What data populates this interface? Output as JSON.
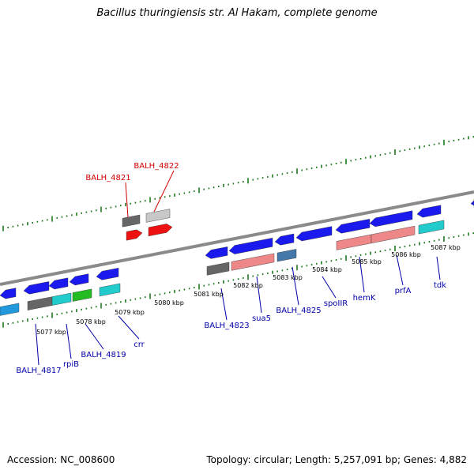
{
  "title": "Bacillus thuringiensis str. Al Hakam, complete genome",
  "footer": {
    "accession": "Accession: NC_008600",
    "topology": "Topology: circular; Length: 5,257,091 bp; Genes: 4,882"
  },
  "colors": {
    "backbone": "#8a8a8a",
    "tick": "#1f7a1f",
    "label_forward": "#d00000",
    "label_reverse": "#0000aa",
    "gene_blue": "#1a1aee",
    "gene_red": "#ee1111",
    "gene_light_red": "#ee8888",
    "gene_gray": "#666666",
    "gene_light_gray": "#c8c8c8",
    "gene_cyan": "#22cccc",
    "gene_light_blue": "#2299dd",
    "gene_green": "#22bb22",
    "gene_steel": "#4477aa"
  },
  "scale_labels": [
    "5077 kbp",
    "5078 kbp",
    "5079 kbp",
    "5080 kbp",
    "5081 kbp",
    "5082 kbp",
    "5083 kbp",
    "5084 kbp",
    "5085 kbp",
    "5086 kbp",
    "5087 kbp"
  ],
  "forward_gene_labels": [
    "BALH_4821",
    "BALH_4822"
  ],
  "reverse_gene_labels": [
    "BALH_4817",
    "rpiB",
    "BALH_4819",
    "crr",
    "BALH_4823",
    "sua5",
    "BALH_4825",
    "spoIIR",
    "hemK",
    "prfA",
    "tdk"
  ]
}
